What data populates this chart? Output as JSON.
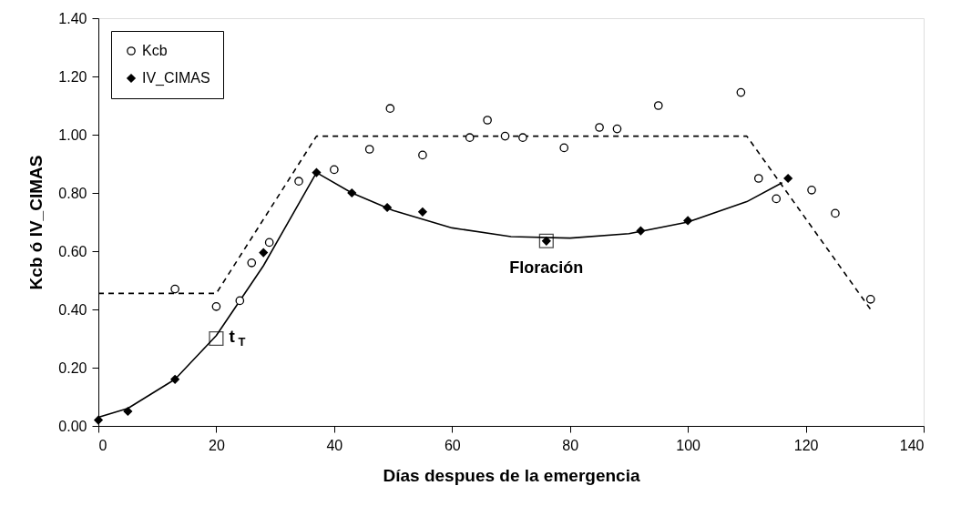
{
  "chart_data": {
    "type": "scatter",
    "xlabel": "Días despues de la emergencia",
    "ylabel": "Kcb ó IV_CIMAS",
    "xlim": [
      0,
      140
    ],
    "xticks": [
      0,
      20,
      40,
      60,
      80,
      100,
      120,
      140
    ],
    "ylim": [
      0,
      1.4
    ],
    "yticks": [
      {
        "value": 0,
        "label": "0.00"
      },
      {
        "value": 0.2,
        "label": "0.20"
      },
      {
        "value": 0.4,
        "label": "0.40"
      },
      {
        "value": 0.6,
        "label": "0.60"
      },
      {
        "value": 0.8,
        "label": "0.80"
      },
      {
        "value": 1.0,
        "label": "1.00"
      },
      {
        "value": 1.2,
        "label": "1.20"
      },
      {
        "value": 1.4,
        "label": "1.40"
      }
    ],
    "grid": false,
    "legend": "top left",
    "series": [
      {
        "name": "Kcb",
        "marker": "circle",
        "color": "#000000",
        "x": [
          13,
          20,
          24,
          26,
          29,
          34,
          40,
          46,
          49.5,
          55,
          63,
          66,
          69,
          72,
          79,
          85,
          88,
          95,
          109,
          112,
          115,
          121,
          125,
          131
        ],
        "values": [
          0.47,
          0.41,
          0.43,
          0.56,
          0.63,
          0.84,
          0.88,
          0.95,
          1.09,
          0.93,
          0.99,
          1.05,
          0.995,
          0.99,
          0.955,
          1.025,
          1.02,
          1.1,
          1.145,
          0.85,
          0.78,
          0.81,
          0.73,
          0.435
        ]
      },
      {
        "name": "IV_CIMAS",
        "marker": "diamond",
        "color": "#000000",
        "x": [
          0,
          5,
          13,
          28,
          37,
          43,
          49,
          55,
          76,
          92,
          100,
          117
        ],
        "values": [
          0.02,
          0.05,
          0.16,
          0.595,
          0.87,
          0.8,
          0.75,
          0.735,
          0.635,
          0.67,
          0.705,
          0.85
        ]
      },
      {
        "type": "line",
        "marker": "none",
        "line_style": "solid",
        "color": "#000000",
        "x": [
          0,
          5,
          13,
          20,
          28,
          37,
          43,
          50,
          60,
          70,
          80,
          90,
          100,
          110,
          116
        ],
        "values": [
          0.03,
          0.06,
          0.16,
          0.31,
          0.55,
          0.87,
          0.8,
          0.74,
          0.68,
          0.65,
          0.645,
          0.66,
          0.7,
          0.77,
          0.835
        ]
      },
      {
        "type": "line",
        "marker": "none",
        "line_style": "dashed",
        "color": "#000000",
        "x": [
          0,
          20,
          37,
          110,
          131
        ],
        "values": [
          0.455,
          0.455,
          0.995,
          0.995,
          0.4
        ]
      }
    ],
    "annotations": [
      {
        "text": "t$_{T}$",
        "x": 20,
        "y": 0.3
      },
      {
        "text": "Floración",
        "x": 76,
        "y": 0.635
      }
    ]
  }
}
